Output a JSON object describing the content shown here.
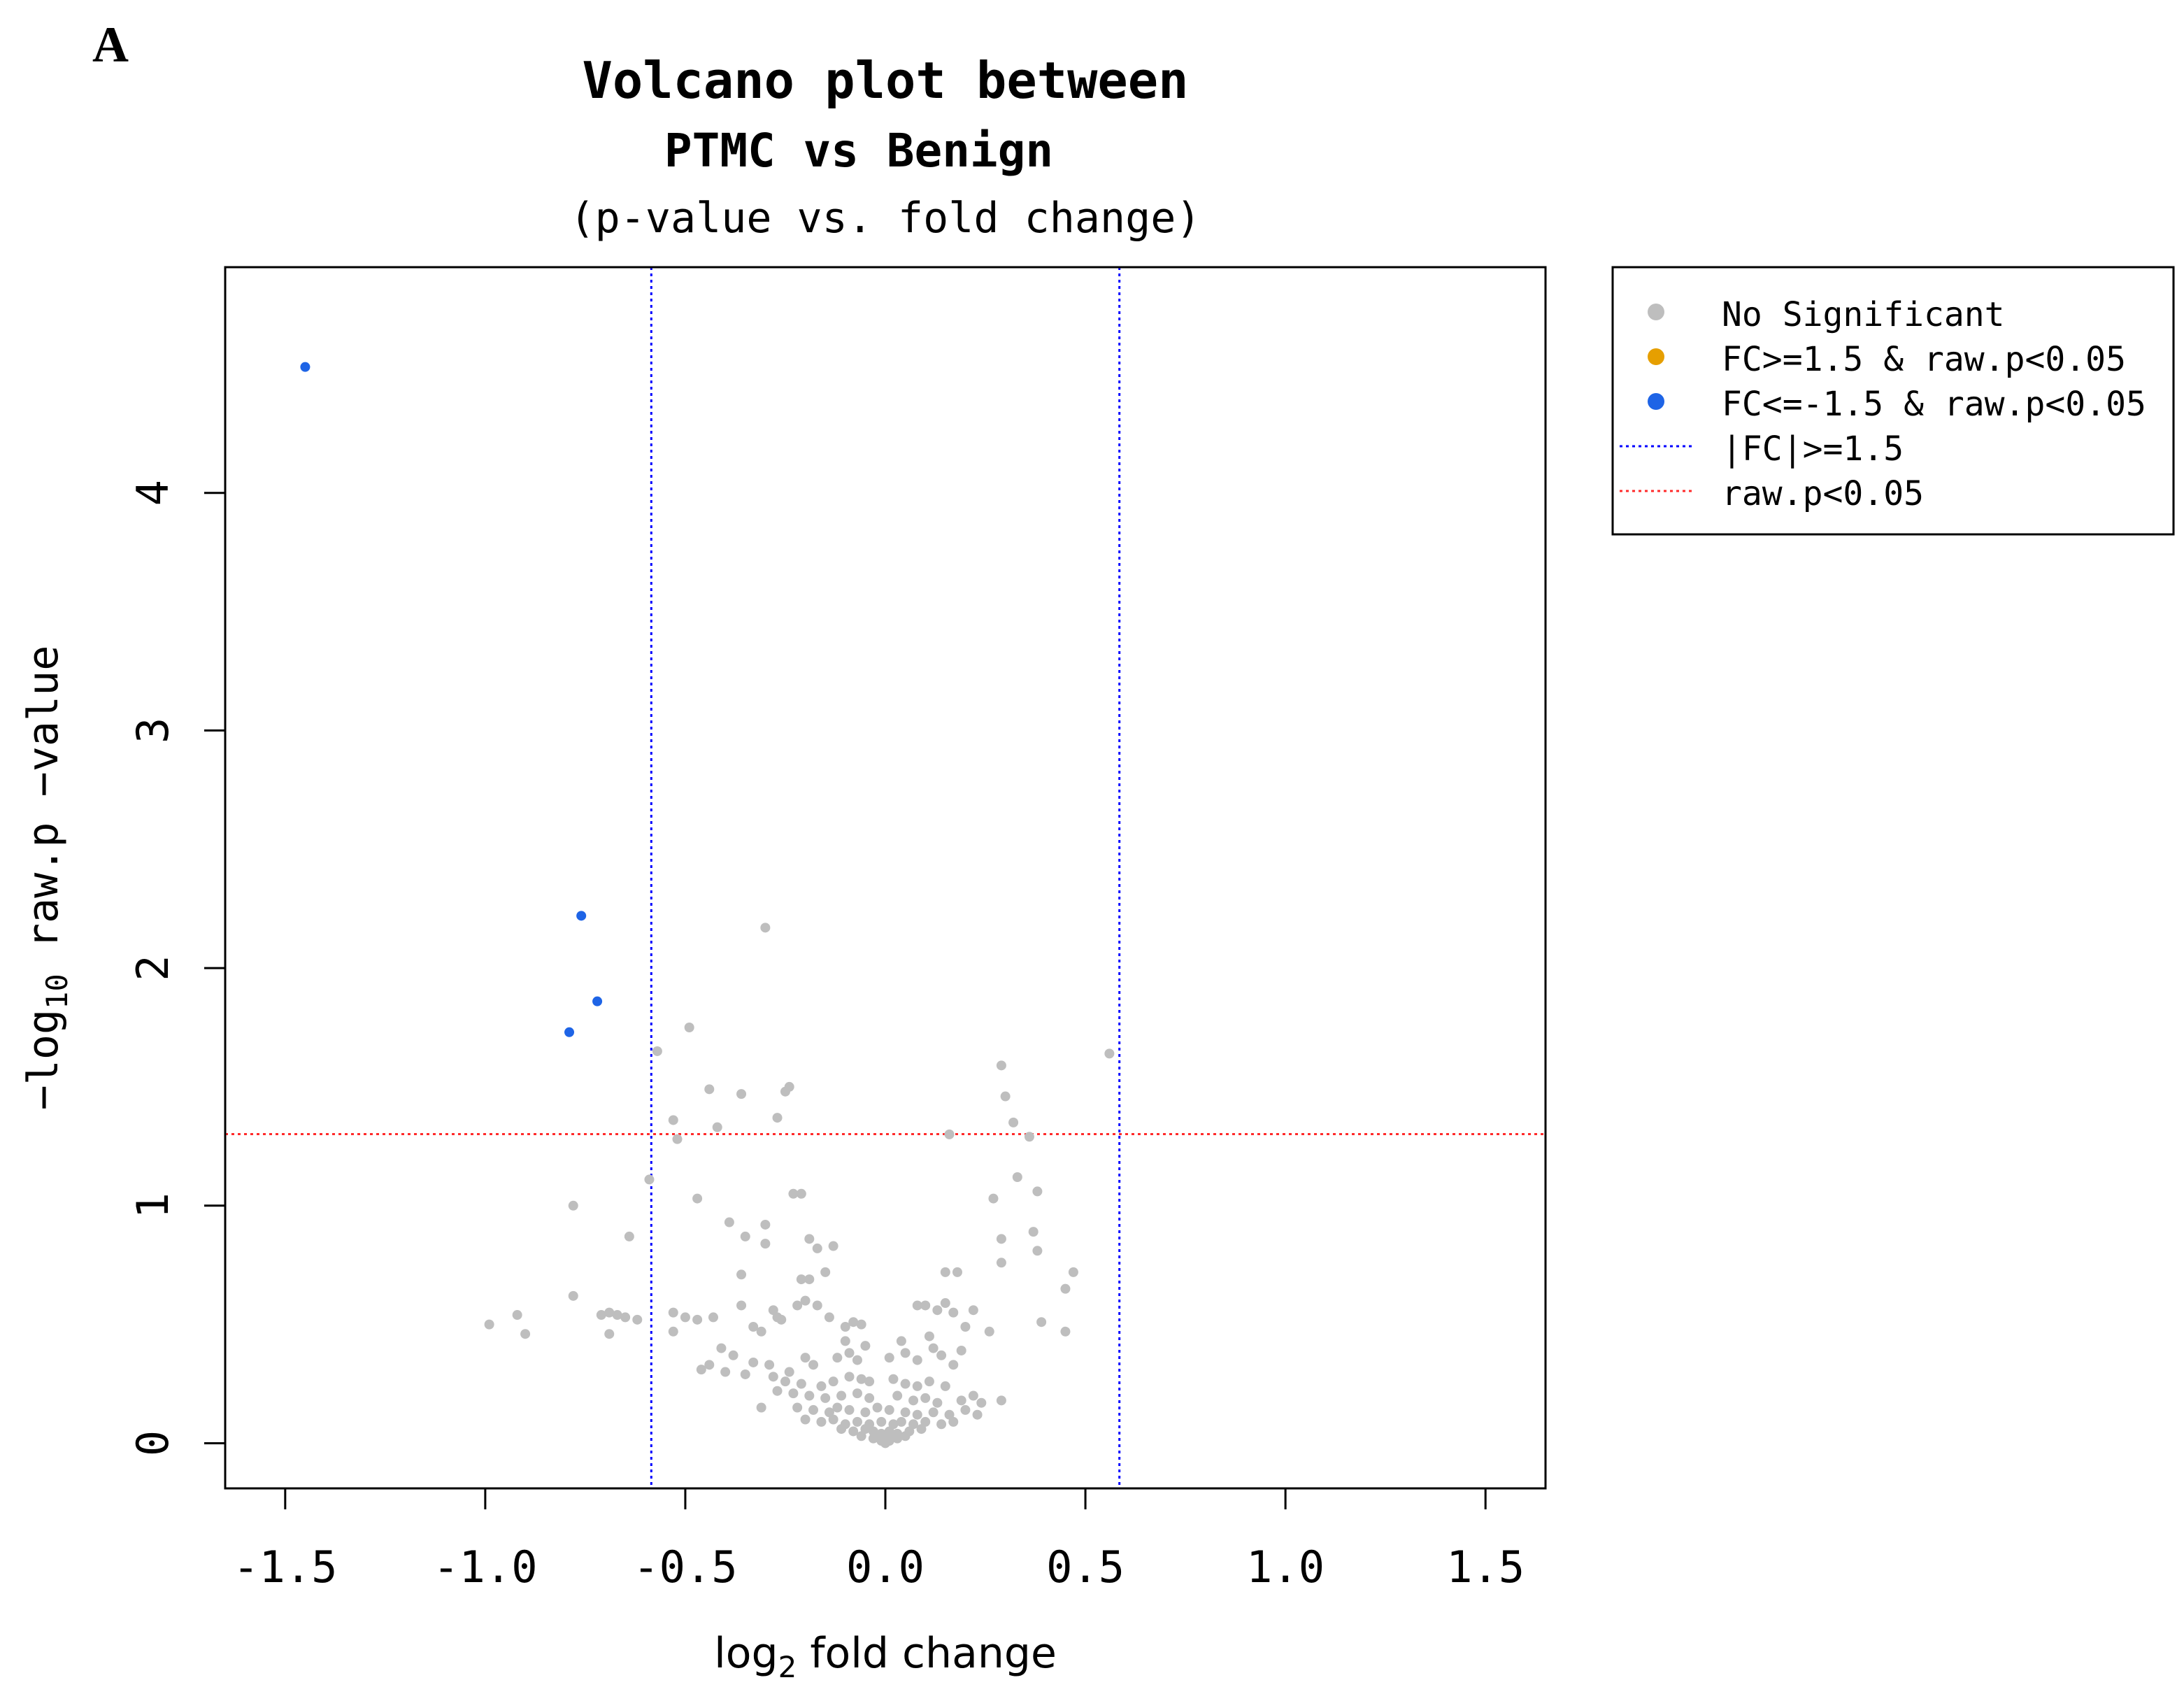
{
  "panel_label": "A",
  "chart_data": {
    "type": "scatter",
    "title": [
      "Volcano plot between",
      "PTMC vs Benign",
      "(p-value vs. fold change)"
    ],
    "xlabel": "log₂ fold change",
    "xlabel_parts": {
      "pre": "log",
      "sub": "2",
      "post": " fold change"
    },
    "ylabel": "−log₁₀ raw.p −value",
    "ylabel_parts": {
      "pre": "−log",
      "sub": "10",
      "post": " raw.p −value"
    },
    "xlim": [
      -1.65,
      1.65
    ],
    "ylim": [
      -0.19,
      4.95
    ],
    "x_ticks": [
      -1.5,
      -1.0,
      -0.5,
      0.0,
      0.5,
      1.0,
      1.5
    ],
    "x_tick_labels": [
      "-1.5",
      "-1.0",
      "-0.5",
      "0.0",
      "0.5",
      "1.0",
      "1.5"
    ],
    "y_ticks": [
      0,
      1,
      2,
      3,
      4
    ],
    "y_tick_labels": [
      "0",
      "1",
      "2",
      "3",
      "4"
    ],
    "vlines": [
      -0.585,
      0.585
    ],
    "hline": 1.301,
    "colors": {
      "nonsig": "#bebebe",
      "up": "#e69f00",
      "down": "#1e64e6",
      "vline": "#0000ff",
      "hline": "#ff2a2a"
    },
    "legend": {
      "position": "top-right-outside",
      "entries": [
        {
          "label": "No Significant",
          "type": "point",
          "color": "#bebebe"
        },
        {
          "label": "FC>=1.5 & raw.p<0.05",
          "type": "point",
          "color": "#e69f00"
        },
        {
          "label": "FC<=-1.5 & raw.p<0.05",
          "type": "point",
          "color": "#1e64e6"
        },
        {
          "label": "|FC|>=1.5",
          "type": "line",
          "color": "#0000ff"
        },
        {
          "label": "raw.p<0.05",
          "type": "line",
          "color": "#ff2a2a"
        }
      ]
    },
    "series": [
      {
        "name": "FC<=-1.5 & raw.p<0.05",
        "color": "#1e64e6",
        "points": [
          [
            -1.45,
            4.53
          ],
          [
            -0.76,
            2.22
          ],
          [
            -0.72,
            1.86
          ],
          [
            -0.79,
            1.73
          ]
        ]
      },
      {
        "name": "No Significant",
        "color": "#bebebe",
        "points": [
          [
            -0.3,
            2.17
          ],
          [
            -0.57,
            1.65
          ],
          [
            -0.49,
            1.75
          ],
          [
            0.56,
            1.64
          ],
          [
            0.29,
            1.59
          ],
          [
            -0.44,
            1.49
          ],
          [
            -0.36,
            1.47
          ],
          [
            -0.24,
            1.5
          ],
          [
            -0.25,
            1.48
          ],
          [
            0.3,
            1.46
          ],
          [
            -0.53,
            1.36
          ],
          [
            -0.52,
            1.28
          ],
          [
            -0.42,
            1.33
          ],
          [
            -0.27,
            1.37
          ],
          [
            0.16,
            1.3
          ],
          [
            0.32,
            1.35
          ],
          [
            0.36,
            1.29
          ],
          [
            -0.59,
            1.11
          ],
          [
            -0.78,
            1.0
          ],
          [
            -0.47,
            1.03
          ],
          [
            -0.23,
            1.05
          ],
          [
            -0.21,
            1.05
          ],
          [
            0.27,
            1.03
          ],
          [
            0.33,
            1.12
          ],
          [
            0.38,
            1.06
          ],
          [
            -0.39,
            0.93
          ],
          [
            -0.3,
            0.92
          ],
          [
            -0.19,
            0.86
          ],
          [
            -0.17,
            0.82
          ],
          [
            -0.13,
            0.83
          ],
          [
            -0.64,
            0.87
          ],
          [
            -0.35,
            0.87
          ],
          [
            -0.3,
            0.84
          ],
          [
            0.29,
            0.86
          ],
          [
            0.37,
            0.89
          ],
          [
            -0.36,
            0.71
          ],
          [
            -0.21,
            0.69
          ],
          [
            -0.19,
            0.69
          ],
          [
            -0.15,
            0.72
          ],
          [
            0.15,
            0.72
          ],
          [
            0.18,
            0.72
          ],
          [
            0.29,
            0.76
          ],
          [
            0.38,
            0.81
          ],
          [
            0.47,
            0.72
          ],
          [
            0.45,
            0.65
          ],
          [
            -0.78,
            0.62
          ],
          [
            -0.71,
            0.54
          ],
          [
            -0.69,
            0.55
          ],
          [
            -0.67,
            0.54
          ],
          [
            -0.65,
            0.53
          ],
          [
            -0.62,
            0.52
          ],
          [
            -0.92,
            0.54
          ],
          [
            -0.99,
            0.5
          ],
          [
            -0.9,
            0.46
          ],
          [
            -0.69,
            0.46
          ],
          [
            -0.53,
            0.55
          ],
          [
            -0.5,
            0.53
          ],
          [
            -0.47,
            0.52
          ],
          [
            -0.53,
            0.47
          ],
          [
            -0.43,
            0.53
          ],
          [
            -0.36,
            0.58
          ],
          [
            -0.33,
            0.49
          ],
          [
            -0.31,
            0.47
          ],
          [
            -0.28,
            0.56
          ],
          [
            -0.27,
            0.53
          ],
          [
            -0.26,
            0.52
          ],
          [
            -0.22,
            0.58
          ],
          [
            -0.2,
            0.6
          ],
          [
            -0.17,
            0.58
          ],
          [
            -0.14,
            0.53
          ],
          [
            -0.1,
            0.49
          ],
          [
            -0.08,
            0.51
          ],
          [
            -0.06,
            0.5
          ],
          [
            0.08,
            0.58
          ],
          [
            0.1,
            0.58
          ],
          [
            0.13,
            0.56
          ],
          [
            0.15,
            0.59
          ],
          [
            0.17,
            0.55
          ],
          [
            0.2,
            0.49
          ],
          [
            0.22,
            0.56
          ],
          [
            0.26,
            0.47
          ],
          [
            0.39,
            0.51
          ],
          [
            0.45,
            0.47
          ],
          [
            -0.1,
            0.43
          ],
          [
            -0.05,
            0.41
          ],
          [
            0.04,
            0.43
          ],
          [
            0.11,
            0.45
          ],
          [
            0.12,
            0.4
          ],
          [
            0.19,
            0.39
          ],
          [
            -0.41,
            0.4
          ],
          [
            -0.38,
            0.37
          ],
          [
            -0.33,
            0.34
          ],
          [
            -0.29,
            0.33
          ],
          [
            -0.24,
            0.3
          ],
          [
            -0.2,
            0.36
          ],
          [
            -0.18,
            0.33
          ],
          [
            -0.12,
            0.36
          ],
          [
            -0.09,
            0.38
          ],
          [
            -0.07,
            0.35
          ],
          [
            0.01,
            0.36
          ],
          [
            0.05,
            0.38
          ],
          [
            0.08,
            0.35
          ],
          [
            0.14,
            0.37
          ],
          [
            0.17,
            0.33
          ],
          [
            -0.44,
            0.33
          ],
          [
            -0.46,
            0.31
          ],
          [
            -0.4,
            0.3
          ],
          [
            -0.35,
            0.29
          ],
          [
            -0.28,
            0.28
          ],
          [
            -0.25,
            0.26
          ],
          [
            -0.21,
            0.25
          ],
          [
            -0.16,
            0.24
          ],
          [
            -0.13,
            0.26
          ],
          [
            -0.09,
            0.28
          ],
          [
            -0.06,
            0.27
          ],
          [
            -0.04,
            0.26
          ],
          [
            0.02,
            0.27
          ],
          [
            0.05,
            0.25
          ],
          [
            0.08,
            0.24
          ],
          [
            0.11,
            0.26
          ],
          [
            0.15,
            0.24
          ],
          [
            -0.27,
            0.22
          ],
          [
            -0.23,
            0.21
          ],
          [
            -0.19,
            0.2
          ],
          [
            -0.15,
            0.19
          ],
          [
            -0.11,
            0.2
          ],
          [
            -0.07,
            0.21
          ],
          [
            -0.04,
            0.19
          ],
          [
            0.03,
            0.2
          ],
          [
            0.07,
            0.18
          ],
          [
            0.1,
            0.19
          ],
          [
            0.13,
            0.17
          ],
          [
            0.19,
            0.18
          ],
          [
            0.22,
            0.2
          ],
          [
            0.24,
            0.17
          ],
          [
            0.29,
            0.18
          ],
          [
            -0.31,
            0.15
          ],
          [
            -0.22,
            0.15
          ],
          [
            -0.18,
            0.14
          ],
          [
            -0.14,
            0.13
          ],
          [
            -0.12,
            0.15
          ],
          [
            -0.09,
            0.14
          ],
          [
            -0.05,
            0.13
          ],
          [
            -0.02,
            0.15
          ],
          [
            0.01,
            0.14
          ],
          [
            0.05,
            0.13
          ],
          [
            0.08,
            0.12
          ],
          [
            0.12,
            0.13
          ],
          [
            0.16,
            0.12
          ],
          [
            0.2,
            0.14
          ],
          [
            0.23,
            0.12
          ],
          [
            -0.2,
            0.1
          ],
          [
            -0.16,
            0.09
          ],
          [
            -0.13,
            0.1
          ],
          [
            -0.1,
            0.08
          ],
          [
            -0.07,
            0.09
          ],
          [
            -0.04,
            0.08
          ],
          [
            -0.01,
            0.09
          ],
          [
            0.02,
            0.08
          ],
          [
            0.04,
            0.09
          ],
          [
            0.07,
            0.08
          ],
          [
            0.1,
            0.09
          ],
          [
            0.14,
            0.08
          ],
          [
            0.17,
            0.09
          ],
          [
            -0.11,
            0.06
          ],
          [
            -0.08,
            0.05
          ],
          [
            -0.05,
            0.06
          ],
          [
            -0.03,
            0.05
          ],
          [
            -0.01,
            0.04
          ],
          [
            0.01,
            0.05
          ],
          [
            0.03,
            0.04
          ],
          [
            0.06,
            0.05
          ],
          [
            0.09,
            0.06
          ],
          [
            -0.06,
            0.03
          ],
          [
            -0.03,
            0.02
          ],
          [
            -0.02,
            0.03
          ],
          [
            0.0,
            0.02
          ],
          [
            0.01,
            0.01
          ],
          [
            0.02,
            0.03
          ],
          [
            0.03,
            0.02
          ],
          [
            0.05,
            0.03
          ],
          [
            -0.01,
            0.01
          ],
          [
            0.0,
            0.0
          ]
        ]
      }
    ]
  }
}
